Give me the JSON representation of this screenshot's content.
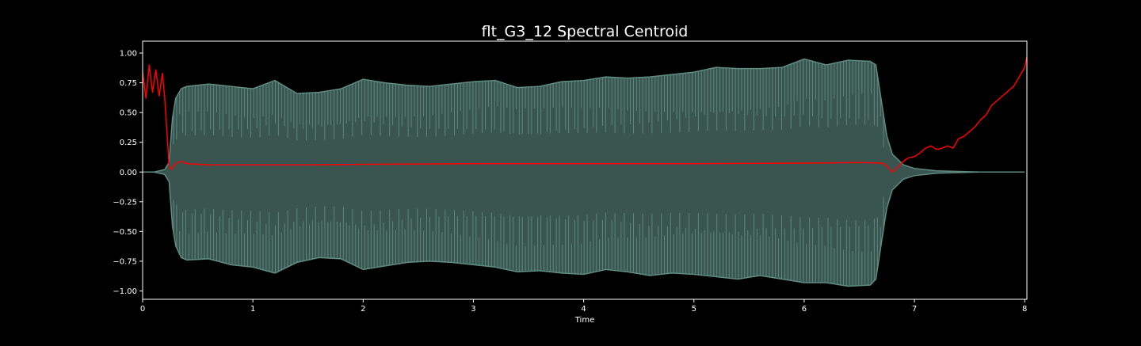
{
  "chart_data": {
    "type": "area",
    "title": "flt_G3_12 Spectral Centroid",
    "xlabel": "Time",
    "ylabel": "",
    "xlim": [
      0,
      8.02
    ],
    "ylim": [
      -1.07,
      1.1
    ],
    "x_ticks": [
      0,
      1,
      2,
      3,
      4,
      5,
      6,
      7,
      8
    ],
    "x_tick_labels": [
      "0",
      "1",
      "2",
      "3",
      "4",
      "5",
      "6",
      "7",
      "8"
    ],
    "y_ticks": [
      1.0,
      0.75,
      0.5,
      0.25,
      0.0,
      -0.25,
      -0.5,
      -0.75,
      -1.0
    ],
    "y_tick_labels": [
      "1.00",
      "0.75",
      "0.50",
      "0.25",
      "0.00",
      "−0.25",
      "−0.50",
      "−0.75",
      "−1.00"
    ],
    "grid": false,
    "colors": {
      "background": "#000000",
      "axes": "#ffffff",
      "waveform_fill": "#3a5550",
      "waveform_edge": "#5e8c83",
      "centroid": "#ff0000"
    },
    "series": [
      {
        "kind": "waveform_envelope",
        "x": [
          0.0,
          0.1,
          0.2,
          0.24,
          0.27,
          0.3,
          0.35,
          0.4,
          0.6,
          0.8,
          1.0,
          1.2,
          1.4,
          1.6,
          1.8,
          2.0,
          2.2,
          2.4,
          2.6,
          2.8,
          3.0,
          3.2,
          3.4,
          3.6,
          3.8,
          4.0,
          4.2,
          4.4,
          4.6,
          4.8,
          5.0,
          5.2,
          5.4,
          5.6,
          5.8,
          6.0,
          6.2,
          6.4,
          6.6,
          6.65,
          6.7,
          6.75,
          6.8,
          6.9,
          7.0,
          7.2,
          7.4,
          7.6,
          8.0
        ],
        "upper": [
          0.0,
          0.0,
          0.02,
          0.08,
          0.45,
          0.62,
          0.7,
          0.72,
          0.74,
          0.72,
          0.7,
          0.77,
          0.66,
          0.67,
          0.7,
          0.78,
          0.75,
          0.73,
          0.72,
          0.74,
          0.76,
          0.77,
          0.71,
          0.72,
          0.76,
          0.77,
          0.8,
          0.79,
          0.8,
          0.82,
          0.84,
          0.88,
          0.87,
          0.87,
          0.88,
          0.95,
          0.9,
          0.94,
          0.93,
          0.9,
          0.6,
          0.3,
          0.15,
          0.06,
          0.03,
          0.01,
          0.005,
          0.0,
          0.0
        ],
        "lower": [
          0.0,
          0.0,
          -0.02,
          -0.08,
          -0.45,
          -0.62,
          -0.72,
          -0.74,
          -0.73,
          -0.78,
          -0.8,
          -0.85,
          -0.76,
          -0.72,
          -0.73,
          -0.82,
          -0.79,
          -0.76,
          -0.75,
          -0.76,
          -0.78,
          -0.8,
          -0.84,
          -0.83,
          -0.85,
          -0.86,
          -0.82,
          -0.84,
          -0.87,
          -0.85,
          -0.86,
          -0.88,
          -0.9,
          -0.87,
          -0.9,
          -0.93,
          -0.93,
          -0.96,
          -0.95,
          -0.9,
          -0.6,
          -0.3,
          -0.15,
          -0.06,
          -0.03,
          -0.01,
          -0.005,
          0.0,
          0.0
        ]
      },
      {
        "kind": "spectral_centroid",
        "x": [
          0.0,
          0.03,
          0.06,
          0.09,
          0.12,
          0.15,
          0.18,
          0.2,
          0.22,
          0.24,
          0.26,
          0.3,
          0.35,
          0.4,
          0.6,
          1.0,
          1.5,
          2.0,
          3.0,
          4.0,
          5.0,
          6.0,
          6.5,
          6.7,
          6.75,
          6.8,
          6.85,
          6.9,
          6.95,
          7.0,
          7.05,
          7.1,
          7.15,
          7.2,
          7.25,
          7.3,
          7.35,
          7.4,
          7.45,
          7.5,
          7.55,
          7.6,
          7.65,
          7.7,
          7.75,
          7.8,
          7.85,
          7.9,
          7.95,
          8.0,
          8.02
        ],
        "y": [
          0.84,
          0.62,
          0.9,
          0.67,
          0.86,
          0.64,
          0.83,
          0.63,
          0.35,
          0.05,
          0.02,
          0.07,
          0.09,
          0.07,
          0.06,
          0.06,
          0.06,
          0.065,
          0.07,
          0.07,
          0.07,
          0.075,
          0.08,
          0.075,
          0.05,
          0.0,
          0.04,
          0.09,
          0.12,
          0.13,
          0.16,
          0.2,
          0.22,
          0.19,
          0.2,
          0.22,
          0.2,
          0.28,
          0.3,
          0.34,
          0.38,
          0.44,
          0.48,
          0.56,
          0.6,
          0.64,
          0.68,
          0.72,
          0.8,
          0.88,
          0.97
        ]
      }
    ]
  }
}
